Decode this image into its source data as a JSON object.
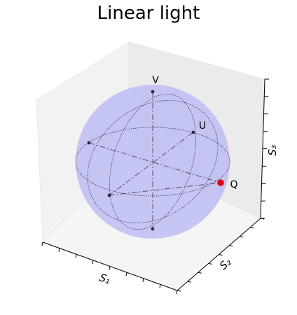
{
  "chart_data": {
    "type": "bloch-sphere",
    "title": "Linear light",
    "axis_labels": {
      "x": "S₁",
      "y": "S₂",
      "z": "S₃"
    },
    "axis_limits": {
      "x": [
        -1,
        1
      ],
      "y": [
        -1,
        1
      ],
      "z": [
        -1,
        1
      ]
    },
    "reference_points": [
      {
        "label": "V",
        "coords": [
          0,
          0,
          1
        ]
      },
      {
        "label": "U",
        "coords": [
          0,
          1,
          0
        ]
      },
      {
        "label": "Q",
        "coords": [
          1,
          0,
          0
        ]
      }
    ],
    "state_point": {
      "coords": [
        1,
        0,
        0
      ],
      "color": "#e3001b"
    },
    "sphere_color": "#b8b8f5",
    "grid": false
  }
}
